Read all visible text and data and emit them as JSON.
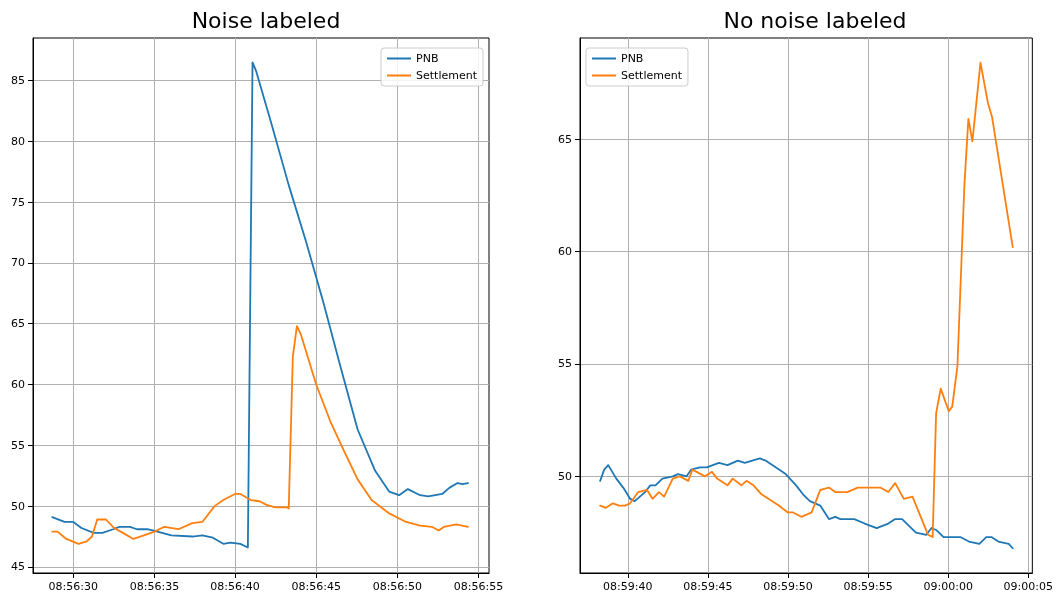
{
  "chart_data": [
    {
      "type": "line",
      "title": "Noise labeled",
      "xlim": [
        8.94098,
        8.94879
      ],
      "xticks": [
        {
          "value": 8.94167,
          "label": "08:56:30"
        },
        {
          "value": 8.94306,
          "label": "08:56:35"
        },
        {
          "value": 8.94444,
          "label": "08:56:40"
        },
        {
          "value": 8.94583,
          "label": "08:56:45"
        },
        {
          "value": 8.94722,
          "label": "08:56:50"
        },
        {
          "value": 8.94861,
          "label": "08:56:55"
        }
      ],
      "ylim": [
        44.5,
        88.5
      ],
      "yticks": [
        45,
        50,
        55,
        60,
        65,
        70,
        75,
        80,
        85
      ],
      "grid": true,
      "legend": "top right",
      "marker": "none",
      "line_style": "solid",
      "series": [
        {
          "name": "PNB",
          "color": "#1f77b4",
          "x": [
            8.94131,
            8.94152,
            8.94167,
            8.94181,
            8.94202,
            8.94217,
            8.94235,
            8.94246,
            8.94264,
            8.94276,
            8.94294,
            8.94311,
            8.94335,
            8.94371,
            8.94388,
            8.94406,
            8.94424,
            8.94436,
            8.94453,
            8.94466,
            8.94474,
            8.9448,
            8.94506,
            8.94536,
            8.94566,
            8.94595,
            8.94625,
            8.94654,
            8.94684,
            8.94708,
            8.94725,
            8.9474,
            8.94761,
            8.94775,
            8.94799,
            8.94811,
            8.94825,
            8.94834,
            8.94843
          ],
          "values": [
            49.1,
            48.7,
            48.7,
            48.2,
            47.8,
            47.8,
            48.1,
            48.3,
            48.3,
            48.1,
            48.1,
            47.9,
            47.6,
            47.5,
            47.6,
            47.4,
            46.9,
            47.0,
            46.9,
            46.6,
            86.5,
            85.8,
            81.5,
            76.4,
            71.7,
            66.8,
            61.4,
            56.3,
            52.9,
            51.2,
            50.9,
            51.4,
            50.9,
            50.8,
            51.0,
            51.5,
            51.9,
            51.8,
            51.9
          ]
        },
        {
          "name": "Settlement",
          "color": "#ff7f0e",
          "x": [
            8.94131,
            8.9414,
            8.94155,
            8.94176,
            8.9419,
            8.94199,
            8.94208,
            8.94223,
            8.94237,
            8.94252,
            8.9427,
            8.94288,
            8.94306,
            8.94323,
            8.94347,
            8.94371,
            8.94388,
            8.94409,
            8.94424,
            8.94444,
            8.94453,
            8.94471,
            8.94486,
            8.94498,
            8.94513,
            8.94533,
            8.94536,
            8.94543,
            8.9455,
            8.94557,
            8.94583,
            8.94607,
            8.94631,
            8.94654,
            8.94678,
            8.94708,
            8.94737,
            8.94761,
            8.94781,
            8.94793,
            8.94802,
            8.94823,
            8.94843
          ],
          "values": [
            47.9,
            47.9,
            47.3,
            46.9,
            47.1,
            47.5,
            48.9,
            48.9,
            48.2,
            47.8,
            47.3,
            47.6,
            47.9,
            48.3,
            48.1,
            48.6,
            48.7,
            50.0,
            50.5,
            51.0,
            51.0,
            50.5,
            50.4,
            50.1,
            49.9,
            49.9,
            49.8,
            62.3,
            64.8,
            64.1,
            60.0,
            57.0,
            54.5,
            52.2,
            50.5,
            49.4,
            48.7,
            48.4,
            48.3,
            48.0,
            48.3,
            48.5,
            48.3
          ]
        }
      ]
    },
    {
      "type": "line",
      "title": "No noise labeled",
      "xlim": [
        8.99361,
        9.00146
      ],
      "xticks": [
        {
          "value": 8.99444,
          "label": "08:59:40"
        },
        {
          "value": 8.99583,
          "label": "08:59:45"
        },
        {
          "value": 8.99722,
          "label": "08:59:50"
        },
        {
          "value": 8.99861,
          "label": "08:59:55"
        },
        {
          "value": 9.0,
          "label": "09:00:00"
        },
        {
          "value": 9.00139,
          "label": "09:00:05"
        }
      ],
      "ylim": [
        45.7,
        69.5
      ],
      "yticks": [
        50,
        55,
        60,
        65
      ],
      "grid": true,
      "legend": "top left",
      "marker": "none",
      "line_style": "solid",
      "series": [
        {
          "name": "PNB",
          "color": "#1f77b4",
          "x": [
            8.99396,
            8.99403,
            8.9941,
            8.99424,
            8.99436,
            8.99448,
            8.99456,
            8.99474,
            8.99483,
            8.99492,
            8.99504,
            8.99522,
            8.99531,
            8.99546,
            8.99554,
            8.99569,
            8.99581,
            8.99602,
            8.99617,
            8.99635,
            8.99647,
            8.99673,
            8.99683,
            8.99718,
            8.99736,
            8.99748,
            8.9976,
            8.99778,
            8.99793,
            8.99804,
            8.99813,
            8.99837,
            8.99855,
            8.99876,
            8.99896,
            8.99908,
            8.9992,
            8.99932,
            8.99944,
            8.99962,
            8.99971,
            8.9998,
            8.99992,
            9.00009,
            9.00021,
            9.00036,
            9.00054,
            9.00066,
            9.00075,
            9.00087,
            9.00105,
            9.00112
          ],
          "values": [
            49.8,
            50.3,
            50.5,
            49.9,
            49.5,
            49.0,
            48.9,
            49.3,
            49.6,
            49.6,
            49.9,
            50.0,
            50.1,
            50.0,
            50.3,
            50.4,
            50.4,
            50.6,
            50.5,
            50.7,
            50.6,
            50.8,
            50.7,
            50.1,
            49.6,
            49.2,
            48.9,
            48.7,
            48.1,
            48.2,
            48.1,
            48.1,
            47.9,
            47.7,
            47.9,
            48.1,
            48.1,
            47.8,
            47.5,
            47.4,
            47.7,
            47.6,
            47.3,
            47.3,
            47.3,
            47.1,
            47.0,
            47.3,
            47.3,
            47.1,
            47.0,
            46.8
          ]
        },
        {
          "name": "Settlement",
          "color": "#ff7f0e",
          "x": [
            8.99396,
            8.99406,
            8.99418,
            8.99429,
            8.99439,
            8.99448,
            8.99462,
            8.99477,
            8.99487,
            8.99498,
            8.99507,
            8.99522,
            8.99534,
            8.99549,
            8.99556,
            8.99578,
            8.9959,
            8.99599,
            8.99617,
            8.99626,
            8.99641,
            8.9965,
            8.99662,
            8.99676,
            8.99688,
            8.99706,
            8.99721,
            8.9973,
            8.99745,
            8.99763,
            8.99772,
            8.99778,
            8.99793,
            8.99804,
            8.99825,
            8.99843,
            8.99861,
            8.99882,
            8.99896,
            8.99908,
            8.99923,
            8.99938,
            8.99965,
            8.99973,
            8.99979,
            8.99987,
            9.00001,
            9.00007,
            9.00016,
            9.00028,
            9.00035,
            9.00042,
            9.00056,
            9.00069,
            9.00076,
            9.00112
          ],
          "values": [
            48.7,
            48.6,
            48.8,
            48.7,
            48.7,
            48.8,
            49.3,
            49.4,
            49.0,
            49.3,
            49.1,
            49.9,
            50.0,
            49.8,
            50.3,
            50.0,
            50.2,
            49.9,
            49.6,
            49.9,
            49.6,
            49.8,
            49.6,
            49.2,
            49.0,
            48.7,
            48.4,
            48.4,
            48.2,
            48.4,
            49.0,
            49.4,
            49.5,
            49.3,
            49.3,
            49.5,
            49.5,
            49.5,
            49.3,
            49.7,
            49.0,
            49.1,
            47.4,
            47.3,
            52.8,
            53.9,
            52.9,
            53.1,
            54.9,
            62.9,
            65.9,
            64.9,
            68.4,
            66.6,
            66.0,
            60.2
          ]
        }
      ]
    }
  ]
}
